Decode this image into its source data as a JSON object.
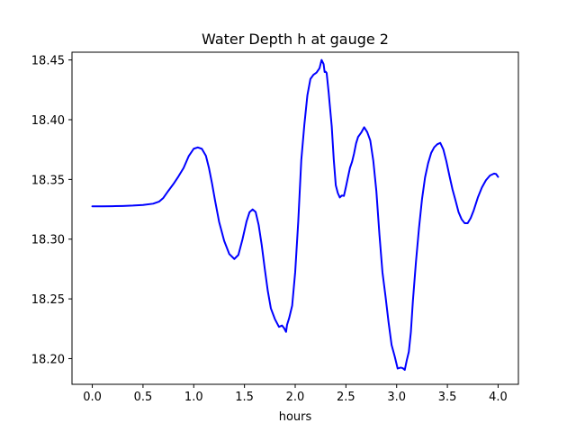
{
  "chart_data": {
    "type": "line",
    "title": "Water Depth h at gauge 2",
    "xlabel": "hours",
    "ylabel": "",
    "xlim": [
      -0.2,
      4.2
    ],
    "ylim": [
      18.1785,
      18.4565
    ],
    "xticks": [
      0.0,
      0.5,
      1.0,
      1.5,
      2.0,
      2.5,
      3.0,
      3.5,
      4.0
    ],
    "xtick_labels": [
      "0.0",
      "0.5",
      "1.0",
      "1.5",
      "2.0",
      "2.5",
      "3.0",
      "3.5",
      "4.0"
    ],
    "yticks": [
      18.2,
      18.25,
      18.3,
      18.35,
      18.4,
      18.45
    ],
    "ytick_labels": [
      "18.20",
      "18.25",
      "18.30",
      "18.35",
      "18.40",
      "18.45"
    ],
    "grid": false,
    "series": [
      {
        "color": "#0000ff",
        "x": [
          0.0,
          0.1,
          0.2,
          0.3,
          0.4,
          0.5,
          0.6,
          0.66,
          0.7,
          0.75,
          0.8,
          0.85,
          0.9,
          0.95,
          1.0,
          1.04,
          1.08,
          1.12,
          1.15,
          1.18,
          1.21,
          1.25,
          1.3,
          1.35,
          1.4,
          1.44,
          1.48,
          1.52,
          1.55,
          1.58,
          1.61,
          1.64,
          1.67,
          1.7,
          1.73,
          1.76,
          1.8,
          1.84,
          1.87,
          1.89,
          1.91,
          1.92,
          1.94,
          1.97,
          2.0,
          2.03,
          2.06,
          2.09,
          2.12,
          2.15,
          2.18,
          2.21,
          2.24,
          2.26,
          2.28,
          2.29,
          2.3,
          2.31,
          2.33,
          2.34,
          2.36,
          2.38,
          2.4,
          2.42,
          2.44,
          2.46,
          2.48,
          2.5,
          2.52,
          2.54,
          2.56,
          2.58,
          2.6,
          2.62,
          2.65,
          2.68,
          2.71,
          2.74,
          2.77,
          2.8,
          2.83,
          2.86,
          2.89,
          2.92,
          2.95,
          2.98,
          3.01,
          3.04,
          3.06,
          3.08,
          3.1,
          3.12,
          3.14,
          3.16,
          3.19,
          3.22,
          3.25,
          3.28,
          3.31,
          3.34,
          3.37,
          3.4,
          3.43,
          3.46,
          3.49,
          3.52,
          3.55,
          3.58,
          3.61,
          3.64,
          3.67,
          3.7,
          3.73,
          3.76,
          3.8,
          3.84,
          3.88,
          3.92,
          3.96,
          3.98,
          4.0
        ],
        "y": [
          18.3275,
          18.3275,
          18.3276,
          18.3278,
          18.3281,
          18.3286,
          18.3297,
          18.3315,
          18.3345,
          18.3405,
          18.3462,
          18.3526,
          18.3596,
          18.3694,
          18.3757,
          18.3768,
          18.3756,
          18.3698,
          18.3596,
          18.3467,
          18.3323,
          18.3145,
          18.2986,
          18.2876,
          18.2834,
          18.2868,
          18.2997,
          18.3147,
          18.3226,
          18.3249,
          18.3228,
          18.3118,
          18.2951,
          18.2752,
          18.2566,
          18.2421,
          18.2331,
          18.2266,
          18.2277,
          18.2256,
          18.2224,
          18.2284,
          18.2338,
          18.2443,
          18.2725,
          18.3146,
          18.3661,
          18.3956,
          18.4204,
          18.4341,
          18.4376,
          18.4394,
          18.4431,
          18.45,
          18.4466,
          18.4399,
          18.4402,
          18.4391,
          18.4226,
          18.4131,
          18.3946,
          18.3667,
          18.3451,
          18.3386,
          18.3349,
          18.3365,
          18.3362,
          18.3437,
          18.3518,
          18.3597,
          18.3646,
          18.3716,
          18.3802,
          18.3856,
          18.3891,
          18.3937,
          18.3896,
          18.3826,
          18.3655,
          18.3402,
          18.3042,
          18.2723,
          18.2522,
          18.2306,
          18.2115,
          18.2021,
          18.1917,
          18.1925,
          18.192,
          18.1906,
          18.1987,
          18.2057,
          18.2221,
          18.2481,
          18.2807,
          18.3091,
          18.3335,
          18.3517,
          18.3635,
          18.3721,
          18.3769,
          18.3794,
          18.3806,
          18.3752,
          18.3652,
          18.3532,
          18.3418,
          18.3325,
          18.3227,
          18.3167,
          18.3134,
          18.3134,
          18.3177,
          18.3242,
          18.3348,
          18.3432,
          18.3493,
          18.3533,
          18.3549,
          18.3545,
          18.3521
        ]
      }
    ]
  }
}
